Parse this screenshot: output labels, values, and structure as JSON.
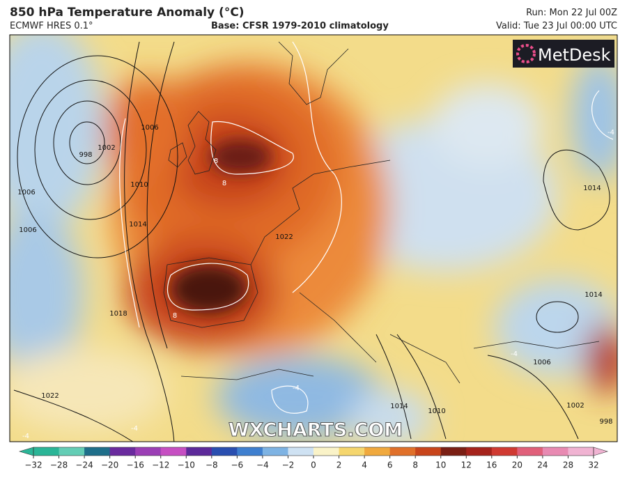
{
  "header": {
    "title": "850 hPa Temperature Anomaly (°C)",
    "model": "ECMWF HRES 0.1°",
    "base": "Base: CFSR 1979-2010 climatology",
    "run": "Run: Mon 22 Jul 00Z",
    "valid": "Valid: Tue 23 Jul 00:00 UTC"
  },
  "logo": "MetDesk",
  "watermark": "WXCHARTS.COM",
  "contour_labels": [
    998,
    1002,
    1006,
    1006,
    1006,
    1010,
    1014,
    1018,
    1022,
    1022,
    8,
    8,
    8,
    1014,
    1014,
    1006,
    1002,
    998,
    1010,
    1014,
    -4,
    -4,
    -4,
    -4,
    -4
  ],
  "colorbar": {
    "ticks": [
      {
        "value": -32,
        "label": "−32"
      },
      {
        "value": -28,
        "label": "−28"
      },
      {
        "value": -24,
        "label": "−24"
      },
      {
        "value": -20,
        "label": "−20"
      },
      {
        "value": -16,
        "label": "−16"
      },
      {
        "value": -12,
        "label": "−12"
      },
      {
        "value": -10,
        "label": "−10"
      },
      {
        "value": -8,
        "label": "−8"
      },
      {
        "value": -6,
        "label": "−6"
      },
      {
        "value": -4,
        "label": "−4"
      },
      {
        "value": -2,
        "label": "−2"
      },
      0,
      2,
      4,
      6,
      8,
      10,
      12,
      16,
      20,
      24,
      28,
      32
    ],
    "colors": [
      "#2bb597",
      "#63cdb5",
      "#1f6f8a",
      "#6a2b9e",
      "#9b3fb5",
      "#c64fc2",
      "#5d2a9a",
      "#2a4fb0",
      "#3f7fcf",
      "#7eb3e3",
      "#cfe2f3",
      "#faf3c8",
      "#f5d66e",
      "#f0a93e",
      "#e0702a",
      "#c8451b",
      "#7a1f14",
      "#a5231c",
      "#d03a32",
      "#e0607a",
      "#e88ab2",
      "#f0b3d2"
    ]
  }
}
